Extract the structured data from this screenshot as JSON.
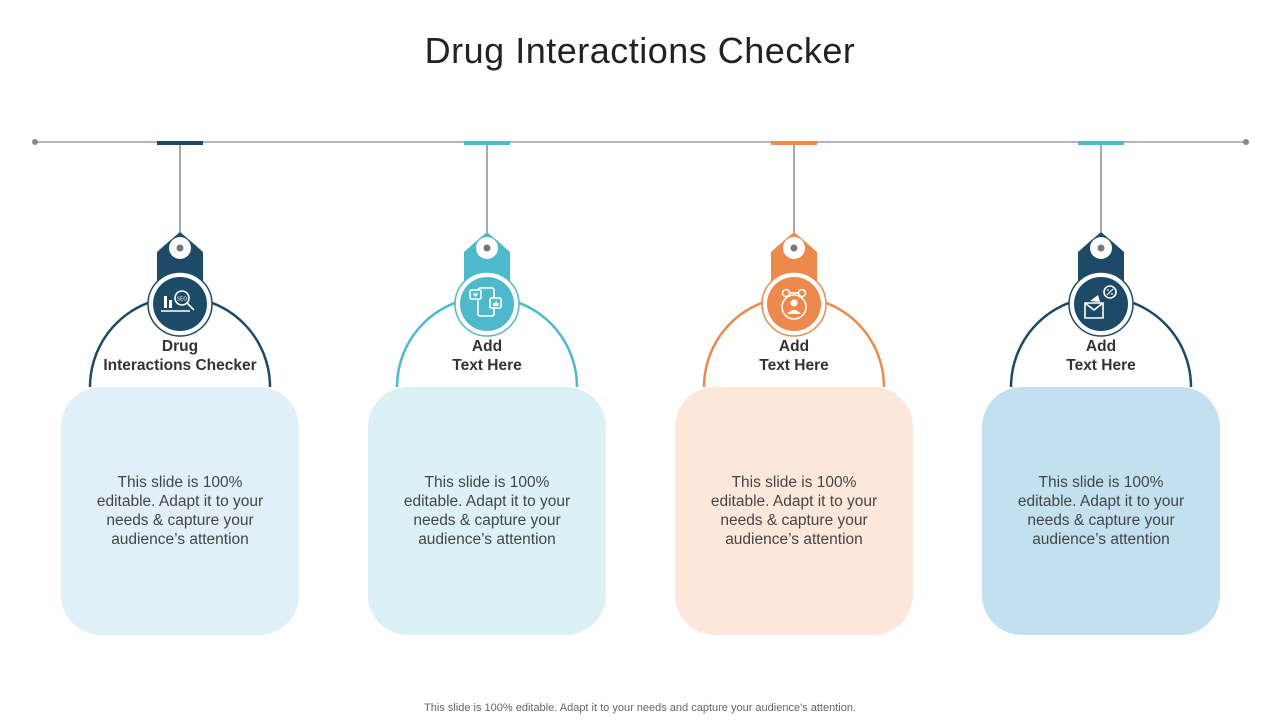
{
  "title": "Drug Interactions Checker",
  "colors": {
    "navy": "#1d4a66",
    "teal": "#4fb9cc",
    "orange": "#eb8a4c",
    "card_light_blue": "#e1eff8",
    "card_light_teal": "#dbf1f5",
    "card_peach": "#fde7da",
    "card_blue": "#c2e0f0"
  },
  "items": [
    {
      "label": "Drug\nInteractions Checker",
      "body": "This slide is 100% editable. Adapt it to your needs & capture your audience’s attention",
      "icon": "seo-analytics-icon",
      "color": "#1d4a66",
      "card_color": "#e1eff8"
    },
    {
      "label": "Add\nText Here",
      "body": "This slide is 100% editable. Adapt it to your needs & capture your audience’s attention",
      "icon": "social-media-phone-icon",
      "color": "#4fb9cc",
      "card_color": "#dbf1f5"
    },
    {
      "label": "Add\nText Here",
      "body": "This slide is 100% editable. Adapt it to your needs & capture your audience’s attention",
      "icon": "social-influencer-icon",
      "color": "#eb8a4c",
      "card_color": "#fde7da"
    },
    {
      "label": "Add\nText Here",
      "body": "This slide is 100% editable. Adapt it to your needs & capture your audience’s attention",
      "icon": "discount-coupon-icon",
      "color": "#1d4a66",
      "card_color": "#c2e0f0"
    }
  ],
  "footer": "This slide is 100% editable. Adapt it to your needs and capture your audience's attention."
}
